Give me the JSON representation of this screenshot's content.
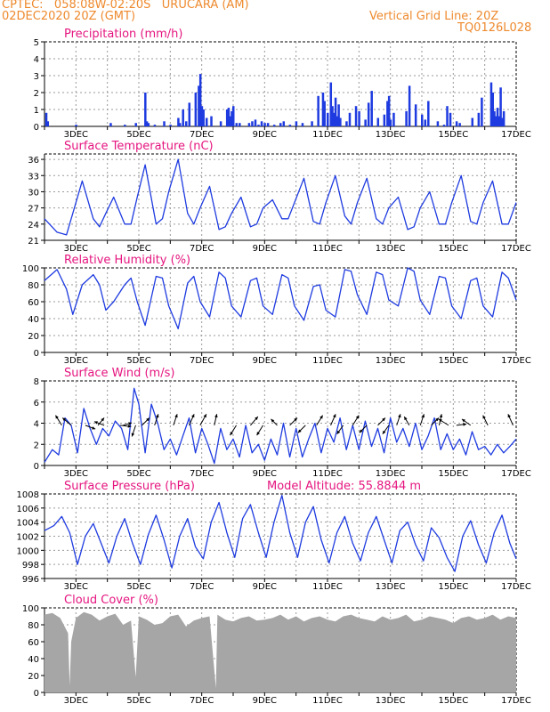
{
  "header": {
    "line1": "CPTEC:   058:08W-02:20S   URUCARA (AM)",
    "line2": "02DEC2020 20Z (GMT)",
    "grid_note": "Vertical Grid Line: 20Z",
    "code": "TQ0126L028"
  },
  "colors": {
    "header": "#ee8a2e",
    "title": "#e5157f",
    "series": "#1e3be0",
    "cloud": "#a6a6a6",
    "grid": "#9a9a9a"
  },
  "chart_data": [
    {
      "type": "bar",
      "title": "Precipitation (mm/h)",
      "ylim": [
        0,
        5
      ],
      "yticks": [
        0,
        1,
        2,
        3,
        4,
        5
      ],
      "x_unit": "day",
      "xlim": [
        2.0,
        17.0
      ],
      "date_labels": [
        "3DEC",
        "5DEC",
        "7DEC",
        "9DEC",
        "11DEC",
        "13DEC",
        "15DEC",
        "17DEC"
      ],
      "x": [
        2.05,
        2.1,
        3.0,
        4.1,
        4.55,
        4.9,
        5.2,
        5.25,
        5.3,
        5.5,
        5.8,
        6.0,
        6.25,
        6.3,
        6.4,
        6.5,
        6.6,
        6.8,
        6.9,
        6.95,
        7.0,
        7.05,
        7.15,
        7.3,
        7.6,
        7.8,
        7.85,
        7.9,
        7.95,
        8.0,
        8.1,
        8.2,
        8.5,
        8.6,
        8.7,
        8.8,
        8.9,
        9.0,
        9.1,
        9.3,
        9.5,
        9.6,
        9.8,
        10.0,
        10.2,
        10.5,
        10.7,
        10.85,
        10.9,
        11.0,
        11.1,
        11.15,
        11.2,
        11.25,
        11.3,
        11.35,
        11.4,
        11.6,
        11.7,
        11.9,
        12.0,
        12.2,
        12.3,
        12.4,
        12.6,
        12.8,
        12.9,
        12.95,
        13.0,
        13.1,
        13.5,
        13.6,
        13.8,
        14.0,
        14.1,
        14.2,
        14.5,
        14.7,
        14.8,
        14.9,
        15.1,
        15.2,
        15.6,
        15.8,
        15.9,
        16.2,
        16.25,
        16.3,
        16.35,
        16.4,
        16.45,
        16.5,
        16.55,
        16.6
      ],
      "values": [
        0.8,
        0.3,
        0.1,
        0.2,
        0.1,
        0.2,
        2.0,
        0.3,
        0.2,
        0.1,
        0.3,
        0.1,
        0.5,
        0.2,
        1.0,
        0.3,
        1.4,
        2.0,
        2.4,
        3.1,
        1.2,
        1.0,
        0.5,
        0.6,
        0.3,
        1.0,
        1.1,
        0.6,
        0.9,
        1.2,
        0.2,
        0.2,
        0.2,
        0.3,
        0.4,
        0.1,
        0.3,
        0.2,
        0.2,
        0.1,
        0.2,
        0.3,
        0.1,
        0.3,
        0.2,
        0.3,
        1.8,
        2.0,
        1.5,
        0.8,
        2.6,
        1.2,
        0.8,
        1.7,
        0.6,
        1.3,
        0.5,
        0.3,
        0.8,
        1.2,
        0.9,
        0.4,
        1.4,
        2.1,
        0.5,
        0.7,
        1.5,
        1.8,
        0.4,
        0.8,
        0.9,
        2.4,
        1.3,
        0.7,
        0.4,
        1.5,
        0.3,
        0.1,
        1.2,
        0.8,
        0.3,
        0.2,
        0.5,
        0.8,
        1.7,
        2.6,
        2.0,
        0.9,
        0.6,
        1.1,
        0.6,
        2.3,
        0.5,
        0.9
      ]
    },
    {
      "type": "line",
      "title": "Surface Temperature (nC)",
      "ylim": [
        21,
        37
      ],
      "yticks": [
        21,
        24,
        27,
        30,
        33,
        36
      ],
      "x_unit": "day",
      "xlim": [
        2.0,
        17.0
      ],
      "date_labels": [
        "3DEC",
        "5DEC",
        "7DEC",
        "9DEC",
        "11DEC",
        "13DEC",
        "15DEC",
        "17DEC"
      ],
      "x": [
        2.0,
        2.4,
        2.7,
        2.9,
        3.2,
        3.55,
        3.75,
        3.95,
        4.2,
        4.55,
        4.75,
        4.95,
        5.2,
        5.55,
        5.75,
        5.95,
        6.25,
        6.55,
        6.75,
        6.95,
        7.25,
        7.55,
        7.75,
        7.95,
        8.25,
        8.55,
        8.75,
        8.95,
        9.25,
        9.55,
        9.75,
        9.95,
        10.25,
        10.55,
        10.75,
        10.95,
        11.25,
        11.55,
        11.75,
        11.95,
        12.25,
        12.55,
        12.75,
        12.95,
        13.25,
        13.55,
        13.75,
        13.95,
        14.25,
        14.55,
        14.75,
        14.95,
        15.25,
        15.55,
        15.75,
        15.95,
        16.25,
        16.55,
        16.75,
        17.0
      ],
      "values": [
        25,
        22.5,
        22,
        26,
        32,
        25,
        23.5,
        26,
        29,
        24,
        24,
        29,
        35,
        24,
        25,
        30,
        36,
        26,
        24,
        27,
        31,
        23,
        23.5,
        26,
        29,
        23.5,
        24,
        27,
        28.5,
        25,
        25,
        28,
        32.5,
        24.5,
        24,
        28,
        33,
        25.5,
        24,
        28,
        32.5,
        25,
        24,
        27,
        29,
        23,
        23.5,
        27,
        30,
        24,
        24,
        28,
        33,
        24.5,
        24,
        28,
        32,
        24,
        24,
        28
      ]
    },
    {
      "type": "line",
      "title": "Relative Humidity (%)",
      "ylim": [
        0,
        100
      ],
      "yticks": [
        0,
        20,
        40,
        60,
        80,
        100
      ],
      "x_unit": "day",
      "xlim": [
        2.0,
        17.0
      ],
      "date_labels": [
        "3DEC",
        "5DEC",
        "7DEC",
        "9DEC",
        "11DEC",
        "13DEC",
        "15DEC",
        "17DEC"
      ],
      "x": [
        2.0,
        2.4,
        2.7,
        2.9,
        3.2,
        3.55,
        3.75,
        3.95,
        4.2,
        4.55,
        4.75,
        4.95,
        5.2,
        5.55,
        5.75,
        5.95,
        6.25,
        6.55,
        6.75,
        6.95,
        7.25,
        7.55,
        7.75,
        7.95,
        8.25,
        8.55,
        8.75,
        8.95,
        9.25,
        9.55,
        9.75,
        9.95,
        10.25,
        10.55,
        10.75,
        10.95,
        11.25,
        11.55,
        11.75,
        11.95,
        12.25,
        12.55,
        12.75,
        12.95,
        13.25,
        13.55,
        13.75,
        13.95,
        14.25,
        14.55,
        14.75,
        14.95,
        15.25,
        15.55,
        15.75,
        15.95,
        16.25,
        16.55,
        16.75,
        17.0
      ],
      "values": [
        85,
        98,
        75,
        45,
        80,
        92,
        80,
        50,
        60,
        80,
        88,
        60,
        32,
        90,
        88,
        55,
        28,
        82,
        90,
        60,
        42,
        95,
        88,
        55,
        42,
        85,
        88,
        55,
        45,
        92,
        88,
        55,
        38,
        78,
        80,
        50,
        42,
        98,
        96,
        68,
        45,
        95,
        92,
        62,
        55,
        100,
        96,
        62,
        45,
        90,
        88,
        55,
        40,
        85,
        88,
        55,
        42,
        95,
        88,
        62
      ]
    },
    {
      "type": "line",
      "title": "Surface Wind (m/s)",
      "ylim": [
        0,
        8
      ],
      "yticks": [
        0,
        2,
        4,
        6,
        8
      ],
      "x_unit": "day",
      "xlim": [
        2.0,
        17.0
      ],
      "date_labels": [
        "3DEC",
        "5DEC",
        "7DEC",
        "9DEC",
        "11DEC",
        "13DEC",
        "15DEC",
        "17DEC"
      ],
      "x": [
        2.0,
        2.25,
        2.45,
        2.65,
        2.85,
        3.05,
        3.25,
        3.45,
        3.65,
        3.85,
        4.05,
        4.25,
        4.45,
        4.65,
        4.85,
        5.0,
        5.2,
        5.4,
        5.6,
        5.8,
        6.0,
        6.2,
        6.4,
        6.6,
        6.8,
        7.0,
        7.2,
        7.4,
        7.6,
        7.8,
        8.0,
        8.2,
        8.4,
        8.6,
        8.8,
        9.0,
        9.2,
        9.4,
        9.6,
        9.8,
        10.0,
        10.2,
        10.4,
        10.6,
        10.8,
        11.0,
        11.2,
        11.4,
        11.6,
        11.8,
        12.0,
        12.2,
        12.4,
        12.6,
        12.8,
        13.0,
        13.2,
        13.4,
        13.6,
        13.8,
        14.0,
        14.2,
        14.4,
        14.6,
        14.8,
        15.0,
        15.2,
        15.4,
        15.6,
        15.8,
        16.0,
        16.2,
        16.4,
        16.6,
        16.8,
        17.0
      ],
      "values": [
        0.3,
        1.5,
        1.0,
        4.5,
        3.8,
        1.2,
        5.4,
        3.5,
        2.0,
        3.5,
        2.8,
        4.2,
        3.5,
        1.5,
        7.3,
        5.8,
        1.2,
        5.8,
        4.0,
        1.5,
        2.5,
        1.0,
        2.8,
        4.5,
        1.2,
        3.5,
        2.0,
        0.2,
        3.5,
        1.5,
        2.5,
        0.8,
        3.8,
        1.2,
        2.0,
        0.5,
        2.5,
        1.0,
        4.0,
        0.8,
        3.5,
        0.8,
        2.5,
        4.0,
        1.2,
        3.5,
        2.2,
        4.5,
        1.5,
        3.8,
        1.5,
        4.2,
        1.8,
        3.5,
        1.2,
        4.5,
        2.2,
        3.5,
        1.8,
        4.0,
        1.5,
        2.8,
        4.5,
        1.5,
        3.0,
        1.5,
        2.5,
        1.0,
        3.2,
        1.5,
        1.8,
        1.0,
        2.0,
        1.2,
        1.8,
        2.5
      ],
      "vectors": [
        {
          "x": 2.55,
          "ux": -0.5,
          "vy": 0.8
        },
        {
          "x": 2.85,
          "ux": -0.7,
          "vy": 0.6
        },
        {
          "x": 3.3,
          "ux": 0.8,
          "vy": -0.3
        },
        {
          "x": 3.7,
          "ux": 0.5,
          "vy": 0.6
        },
        {
          "x": 3.9,
          "ux": -0.8,
          "vy": 0.3
        },
        {
          "x": 4.4,
          "ux": 0.9,
          "vy": -0.1
        },
        {
          "x": 4.5,
          "ux": 0.7,
          "vy": 0.2
        },
        {
          "x": 4.9,
          "ux": -0.3,
          "vy": -0.9
        },
        {
          "x": 5.1,
          "ux": 0.6,
          "vy": 0.6
        },
        {
          "x": 5.5,
          "ux": 0.3,
          "vy": 0.9
        },
        {
          "x": 6.1,
          "ux": 0.3,
          "vy": 0.9
        },
        {
          "x": 6.6,
          "ux": 0.4,
          "vy": 0.9
        },
        {
          "x": 6.95,
          "ux": 0.5,
          "vy": 0.9
        },
        {
          "x": 7.4,
          "ux": 0.2,
          "vy": 0.9
        },
        {
          "x": 8.1,
          "ux": -0.5,
          "vy": -0.8
        },
        {
          "x": 8.55,
          "ux": 0.6,
          "vy": 0.7
        },
        {
          "x": 8.95,
          "ux": -0.5,
          "vy": -0.8
        },
        {
          "x": 9.4,
          "ux": -0.5,
          "vy": 0.5
        },
        {
          "x": 9.8,
          "ux": 0.6,
          "vy": 0.6
        },
        {
          "x": 10.3,
          "ux": -0.6,
          "vy": -0.6
        },
        {
          "x": 10.65,
          "ux": 0.5,
          "vy": 0.8
        },
        {
          "x": 11.1,
          "ux": 0.4,
          "vy": 0.9
        },
        {
          "x": 11.5,
          "ux": -0.5,
          "vy": -0.7
        },
        {
          "x": 11.8,
          "ux": 0.5,
          "vy": 0.8
        },
        {
          "x": 12.25,
          "ux": -0.6,
          "vy": -0.6
        },
        {
          "x": 12.6,
          "ux": 0.6,
          "vy": 0.6
        },
        {
          "x": 12.95,
          "ux": -0.5,
          "vy": -0.7
        },
        {
          "x": 13.2,
          "ux": 0.3,
          "vy": 0.9
        },
        {
          "x": 13.6,
          "ux": -0.4,
          "vy": 0.7
        },
        {
          "x": 13.95,
          "ux": 0.3,
          "vy": 0.9
        },
        {
          "x": 14.3,
          "ux": 0.6,
          "vy": 0.6
        },
        {
          "x": 14.55,
          "ux": 0.2,
          "vy": 0.9
        },
        {
          "x": 14.85,
          "ux": -0.8,
          "vy": 0.5
        },
        {
          "x": 15.1,
          "ux": 0.8,
          "vy": 0.1
        },
        {
          "x": 15.55,
          "ux": -0.7,
          "vy": 0.5
        },
        {
          "x": 16.1,
          "ux": -0.4,
          "vy": 0.8
        },
        {
          "x": 16.9,
          "ux": -0.4,
          "vy": 0.9
        }
      ]
    },
    {
      "type": "line",
      "title": "Surface Pressure (hPa)",
      "annotation": "Model Altitude: 55.8844 m",
      "ylim": [
        996,
        1008
      ],
      "yticks": [
        996,
        998,
        1000,
        1002,
        1004,
        1006,
        1008
      ],
      "x_unit": "day",
      "xlim": [
        2.0,
        17.0
      ],
      "date_labels": [
        "3DEC",
        "5DEC",
        "7DEC",
        "9DEC",
        "11DEC",
        "13DEC",
        "15DEC",
        "17DEC"
      ],
      "x": [
        2.0,
        2.3,
        2.55,
        2.8,
        3.05,
        3.3,
        3.55,
        3.8,
        4.05,
        4.3,
        4.55,
        4.8,
        5.05,
        5.3,
        5.55,
        5.8,
        6.05,
        6.3,
        6.55,
        6.8,
        7.05,
        7.3,
        7.55,
        7.8,
        8.05,
        8.3,
        8.55,
        8.8,
        9.05,
        9.3,
        9.55,
        9.8,
        10.05,
        10.3,
        10.55,
        10.8,
        11.05,
        11.3,
        11.55,
        11.8,
        12.05,
        12.3,
        12.55,
        12.8,
        13.05,
        13.3,
        13.55,
        13.8,
        14.05,
        14.3,
        14.55,
        14.8,
        15.05,
        15.3,
        15.55,
        15.8,
        16.05,
        16.3,
        16.55,
        16.8,
        17.0
      ],
      "values": [
        1002.8,
        1003.5,
        1004.8,
        1002.5,
        998.0,
        1002.0,
        1003.8,
        1001.0,
        998.2,
        1002.0,
        1004.5,
        1001.0,
        998.0,
        1002.2,
        1005.0,
        1001.5,
        997.5,
        1002.0,
        1004.5,
        1000.5,
        998.8,
        1004.0,
        1006.8,
        1002.5,
        999.0,
        1004.5,
        1006.5,
        1002.5,
        999.0,
        1004.0,
        1007.8,
        1002.5,
        999.0,
        1004.0,
        1006.2,
        1001.5,
        998.2,
        1002.5,
        1004.8,
        1001.0,
        998.5,
        1002.5,
        1004.8,
        1001.5,
        998.2,
        1002.8,
        1004.0,
        1000.8,
        998.5,
        1003.2,
        1001.8,
        999.0,
        997.0,
        1002.0,
        1004.2,
        1000.8,
        998.2,
        1002.5,
        1005.0,
        1001.0,
        998.8
      ]
    },
    {
      "type": "bar",
      "title": "Cloud Cover (%)",
      "ylim": [
        0,
        100
      ],
      "yticks": [
        0,
        20,
        40,
        60,
        80,
        100
      ],
      "x_unit": "day",
      "xlim": [
        2.0,
        17.0
      ],
      "date_labels": [
        "3DEC",
        "5DEC",
        "7DEC",
        "9DEC",
        "11DEC",
        "13DEC",
        "15DEC",
        "17DEC"
      ],
      "x": [
        2.0,
        2.25,
        2.5,
        2.75,
        2.8,
        2.85,
        3.0,
        3.25,
        3.5,
        3.75,
        4.0,
        4.25,
        4.5,
        4.75,
        4.9,
        5.0,
        5.25,
        5.5,
        5.75,
        6.0,
        6.25,
        6.5,
        6.75,
        7.0,
        7.25,
        7.45,
        7.5,
        7.75,
        8.0,
        8.25,
        8.5,
        8.75,
        9.0,
        9.25,
        9.5,
        9.75,
        10.0,
        10.25,
        10.5,
        10.75,
        11.0,
        11.25,
        11.5,
        11.75,
        12.0,
        12.25,
        12.5,
        12.75,
        13.0,
        13.25,
        13.5,
        13.75,
        14.0,
        14.25,
        14.5,
        14.75,
        15.0,
        15.25,
        15.5,
        15.75,
        16.0,
        16.25,
        16.5,
        16.75,
        17.0
      ],
      "values": [
        92,
        94,
        88,
        70,
        8,
        60,
        88,
        95,
        92,
        85,
        90,
        93,
        80,
        85,
        18,
        90,
        86,
        80,
        82,
        90,
        92,
        78,
        85,
        88,
        90,
        5,
        92,
        86,
        84,
        88,
        90,
        85,
        86,
        88,
        92,
        86,
        90,
        84,
        88,
        90,
        86,
        84,
        90,
        92,
        88,
        86,
        84,
        90,
        86,
        88,
        92,
        84,
        86,
        90,
        88,
        86,
        82,
        88,
        90,
        86,
        88,
        92,
        86,
        90,
        88
      ]
    }
  ]
}
